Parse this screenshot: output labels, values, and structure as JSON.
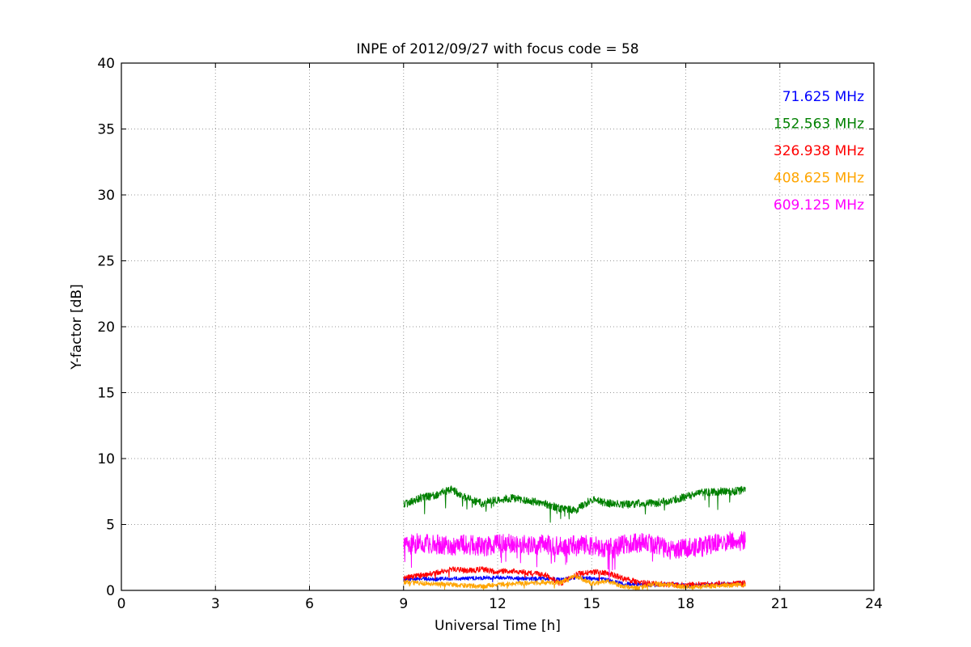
{
  "chart_data": {
    "type": "line",
    "title": "INPE of 2012/09/27 with focus code = 58",
    "xlabel": "Universal Time [h]",
    "ylabel": "Y-factor [dB]",
    "xlim": [
      0,
      24
    ],
    "ylim": [
      0,
      40
    ],
    "xticks": [
      0,
      3,
      6,
      9,
      12,
      15,
      18,
      21,
      24
    ],
    "yticks": [
      0,
      5,
      10,
      15,
      20,
      25,
      30,
      35,
      40
    ],
    "grid": true,
    "grid_style": "dotted",
    "legend_position": "upper right",
    "data_x_range": [
      9.0,
      19.9
    ],
    "x_control": [
      9,
      9.5,
      10,
      10.5,
      11,
      11.5,
      12,
      12.5,
      13,
      13.5,
      14,
      14.5,
      15,
      15.5,
      16,
      16.5,
      17,
      17.5,
      18,
      18.5,
      19,
      19.5,
      20
    ],
    "series": [
      {
        "name": "71.625 MHz",
        "color": "#0000ff",
        "values": [
          0.8,
          0.9,
          0.85,
          0.9,
          0.9,
          0.95,
          1.0,
          0.95,
          0.9,
          0.9,
          0.8,
          1.0,
          0.9,
          0.8,
          0.5,
          0.45,
          0.4,
          0.5,
          0.35,
          0.4,
          0.45,
          0.5,
          0.55
        ],
        "noise": 0.15,
        "spike_probability": 0.01,
        "spike_depth": 0.4
      },
      {
        "name": "152.563 MHz",
        "color": "#008000",
        "values": [
          6.5,
          7.0,
          7.2,
          7.7,
          7.0,
          6.6,
          6.9,
          7.0,
          6.8,
          6.6,
          6.2,
          6.1,
          6.9,
          6.6,
          6.5,
          6.6,
          6.6,
          6.8,
          7.1,
          7.4,
          7.5,
          7.5,
          7.7
        ],
        "noise": 0.3,
        "spike_probability": 0.025,
        "spike_depth": 1.1
      },
      {
        "name": "326.938 MHz",
        "color": "#ff0000",
        "values": [
          0.9,
          1.1,
          1.3,
          1.6,
          1.5,
          1.6,
          1.4,
          1.5,
          1.3,
          1.2,
          0.5,
          1.2,
          1.4,
          1.3,
          0.9,
          0.6,
          0.5,
          0.45,
          0.4,
          0.45,
          0.5,
          0.5,
          0.55
        ],
        "noise": 0.22,
        "spike_probability": 0.012,
        "spike_depth": 0.5
      },
      {
        "name": "408.625 MHz",
        "color": "#ffa500",
        "values": [
          0.6,
          0.55,
          0.5,
          0.45,
          0.35,
          0.3,
          0.45,
          0.5,
          0.55,
          0.6,
          0.6,
          1.1,
          0.5,
          0.7,
          0.3,
          0.15,
          0.5,
          0.4,
          0.25,
          0.3,
          0.35,
          0.4,
          0.45
        ],
        "noise": 0.18,
        "spike_probability": 0.012,
        "spike_depth": 0.4
      },
      {
        "name": "609.125 MHz",
        "color": "#ff00ff",
        "values": [
          3.4,
          3.6,
          3.5,
          3.4,
          3.5,
          3.3,
          3.5,
          3.6,
          3.4,
          3.5,
          3.3,
          3.5,
          3.4,
          3.2,
          3.5,
          3.6,
          3.5,
          3.0,
          3.2,
          3.3,
          3.6,
          3.8,
          3.7
        ],
        "noise": 0.75,
        "spike_probability": 0.03,
        "spike_depth": 1.8
      }
    ]
  }
}
